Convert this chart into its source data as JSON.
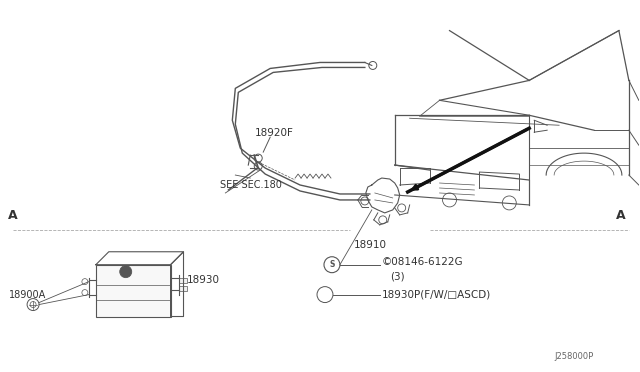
{
  "bg_color": "#ffffff",
  "fig_width": 6.4,
  "fig_height": 3.72,
  "dpi": 100,
  "line_color": "#555555",
  "text_color": "#333333",
  "label_18920F": "18920F",
  "label_see": "SEE SEC.180",
  "label_18910": "18910",
  "label_18930": "18930",
  "label_18900A": "18900A",
  "label_bolt": "©08146-6122G",
  "label_bolt3": "(3)",
  "label_18930p": "18930P(F/W/□ASCD)",
  "label_code": "J258000P",
  "label_A": "A"
}
